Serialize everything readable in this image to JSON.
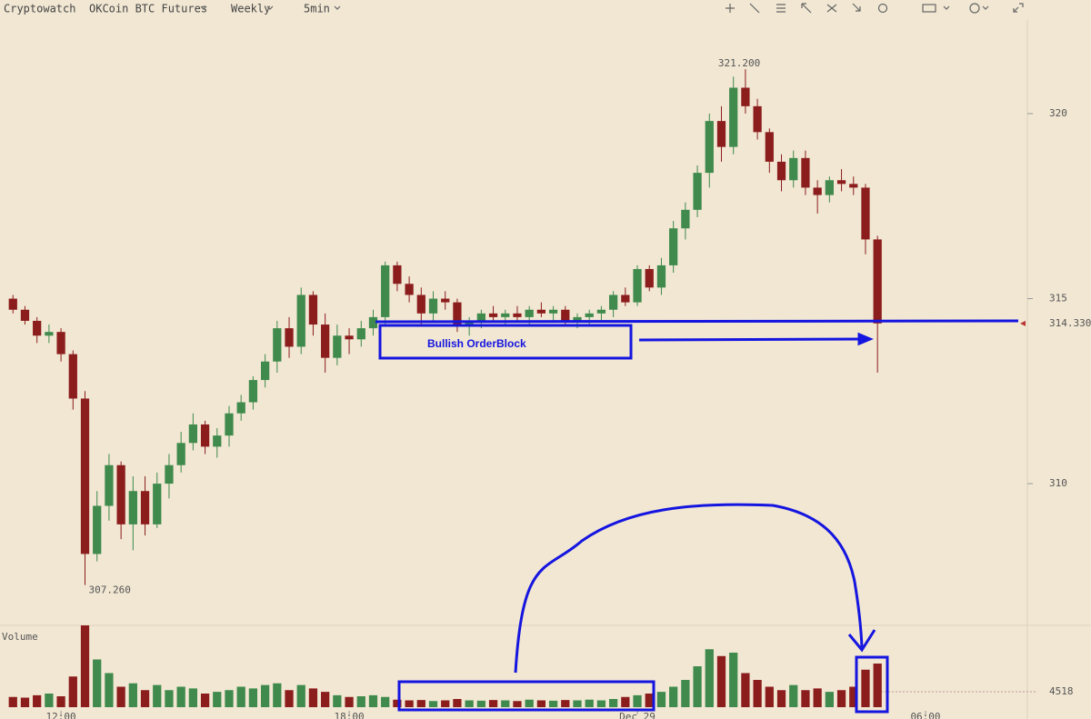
{
  "header": {
    "brand": "Cryptowatch",
    "market": "OKCoin BTC Futures",
    "period": "Weekly",
    "interval": "5min"
  },
  "chart_data": {
    "type": "candlestick",
    "up_color": "#3f8a4c",
    "down_color": "#8c1d1d",
    "x": [
      11,
      11.25,
      11.5,
      11.75,
      12,
      12.25,
      12.5,
      12.75,
      13,
      13.25,
      13.5,
      13.75,
      14,
      14.25,
      14.5,
      14.75,
      15,
      15.25,
      15.5,
      15.75,
      16,
      16.25,
      16.5,
      16.75,
      17,
      17.25,
      17.5,
      17.75,
      18,
      18.25,
      18.5,
      18.75,
      19,
      19.25,
      19.5,
      19.75,
      20,
      20.25,
      20.5,
      20.75,
      21,
      21.25,
      21.5,
      21.75,
      22,
      22.25,
      22.5,
      22.75,
      23,
      23.25,
      23.5,
      23.75,
      24,
      24.25,
      24.5,
      24.75,
      25,
      25.25,
      25.5,
      25.75,
      26,
      26.25,
      26.5,
      26.75,
      27,
      27.25,
      27.5,
      27.75,
      28,
      28.25,
      28.5,
      28.75,
      29
    ],
    "open": [
      315.0,
      314.7,
      314.4,
      314.0,
      314.1,
      313.5,
      312.3,
      308.1,
      309.4,
      310.5,
      308.9,
      309.8,
      308.9,
      310.0,
      310.5,
      311.1,
      311.6,
      311.0,
      311.3,
      311.9,
      312.2,
      312.8,
      313.3,
      314.2,
      313.7,
      315.1,
      314.3,
      313.4,
      314.0,
      313.9,
      314.2,
      314.5,
      315.9,
      315.4,
      315.1,
      314.6,
      315.0,
      314.9,
      314.3,
      314.4,
      314.6,
      314.5,
      314.6,
      314.5,
      314.7,
      314.6,
      314.7,
      314.4,
      314.5,
      314.6,
      314.7,
      315.1,
      314.9,
      315.8,
      315.3,
      315.9,
      316.9,
      317.4,
      318.4,
      319.8,
      319.1,
      320.7,
      320.2,
      319.5,
      318.7,
      318.2,
      318.8,
      318.0,
      317.8,
      318.2,
      318.1,
      318.0,
      316.6
    ],
    "high": [
      315.1,
      314.8,
      314.5,
      314.3,
      314.2,
      313.6,
      312.5,
      309.8,
      310.8,
      310.6,
      310.2,
      310.2,
      310.3,
      310.8,
      311.4,
      311.9,
      311.7,
      311.5,
      312.1,
      312.4,
      312.9,
      313.5,
      314.4,
      314.5,
      315.3,
      315.2,
      314.6,
      314.3,
      314.2,
      314.4,
      314.7,
      316.0,
      316.0,
      315.6,
      315.3,
      315.2,
      315.2,
      315.0,
      314.5,
      314.7,
      314.8,
      314.7,
      314.8,
      314.8,
      314.9,
      314.8,
      314.8,
      314.6,
      314.7,
      314.8,
      315.2,
      315.3,
      315.9,
      315.9,
      316.1,
      317.1,
      317.6,
      318.6,
      320.0,
      320.2,
      321.0,
      321.2,
      320.4,
      319.6,
      318.9,
      319.0,
      319.0,
      318.2,
      318.3,
      318.5,
      318.3,
      318.1,
      316.7
    ],
    "low": [
      314.6,
      314.3,
      313.8,
      313.8,
      313.3,
      312.0,
      307.26,
      307.9,
      309.0,
      308.5,
      308.2,
      308.6,
      308.8,
      309.6,
      310.3,
      310.9,
      310.8,
      310.7,
      311.0,
      311.7,
      312.0,
      312.6,
      313.0,
      313.4,
      313.5,
      314.0,
      313.0,
      313.2,
      313.5,
      313.7,
      314.0,
      314.3,
      315.2,
      314.9,
      314.3,
      314.4,
      314.7,
      314.1,
      314.0,
      314.2,
      314.4,
      314.3,
      314.4,
      314.3,
      314.5,
      314.4,
      314.3,
      314.2,
      314.3,
      314.4,
      314.5,
      314.8,
      314.8,
      315.2,
      315.1,
      315.7,
      316.6,
      317.2,
      318.0,
      318.7,
      318.9,
      320.0,
      319.3,
      318.4,
      317.9,
      318.0,
      317.8,
      317.3,
      317.6,
      317.9,
      317.8,
      316.2,
      313.0
    ],
    "close": [
      314.7,
      314.4,
      314.0,
      314.1,
      313.5,
      312.3,
      308.1,
      309.4,
      310.5,
      308.9,
      309.8,
      308.9,
      310.0,
      310.5,
      311.1,
      311.6,
      311.0,
      311.3,
      311.9,
      312.2,
      312.8,
      313.3,
      314.2,
      313.7,
      315.1,
      314.3,
      313.4,
      314.0,
      313.9,
      314.2,
      314.5,
      315.9,
      315.4,
      315.1,
      314.6,
      315.0,
      314.9,
      314.3,
      314.4,
      314.6,
      314.5,
      314.6,
      314.5,
      314.7,
      314.6,
      314.7,
      314.4,
      314.5,
      314.6,
      314.7,
      315.1,
      314.9,
      315.8,
      315.3,
      315.9,
      316.9,
      317.4,
      318.4,
      319.8,
      319.1,
      320.7,
      320.2,
      319.5,
      318.7,
      318.2,
      318.8,
      318.0,
      317.8,
      318.2,
      318.1,
      318.0,
      316.6,
      314.33
    ],
    "volume": [
      3000,
      2800,
      3500,
      4000,
      3200,
      9000,
      24000,
      14000,
      10000,
      6000,
      7000,
      5000,
      6500,
      5000,
      6000,
      5500,
      4000,
      4500,
      5000,
      6000,
      5500,
      6500,
      7000,
      5000,
      6500,
      5500,
      4500,
      3500,
      3000,
      3200,
      3500,
      3000,
      2200,
      2000,
      2100,
      1800,
      2000,
      2400,
      2000,
      1900,
      2100,
      2000,
      1800,
      2200,
      2000,
      1900,
      2100,
      2000,
      2200,
      2000,
      2400,
      3000,
      3500,
      4000,
      4500,
      6000,
      8000,
      12000,
      17000,
      15000,
      16000,
      10000,
      8000,
      6000,
      5000,
      6500,
      5000,
      5500,
      4500,
      5000,
      6000,
      11000,
      12800
    ],
    "xlim": [
      10.73,
      32.12
    ],
    "xticks": [
      {
        "value": 12,
        "label": "12:00"
      },
      {
        "value": 18,
        "label": "18:00"
      },
      {
        "value": 24,
        "label": "Dec 29"
      },
      {
        "value": 30,
        "label": "06:00"
      }
    ],
    "ylim": [
      306.17,
      322.53
    ],
    "yticks": [
      310,
      315,
      320
    ],
    "y2lim": [
      0,
      24000
    ],
    "y2ticks": [
      4518
    ],
    "volume_label": "Volume",
    "price_labels": [
      {
        "value": 321.2,
        "label": "321.200"
      },
      {
        "value": 307.26,
        "label": "307.260"
      }
    ],
    "last_price": {
      "value": 314.33,
      "label": "314.330"
    },
    "annotation": "Bullish OrderBlock"
  }
}
